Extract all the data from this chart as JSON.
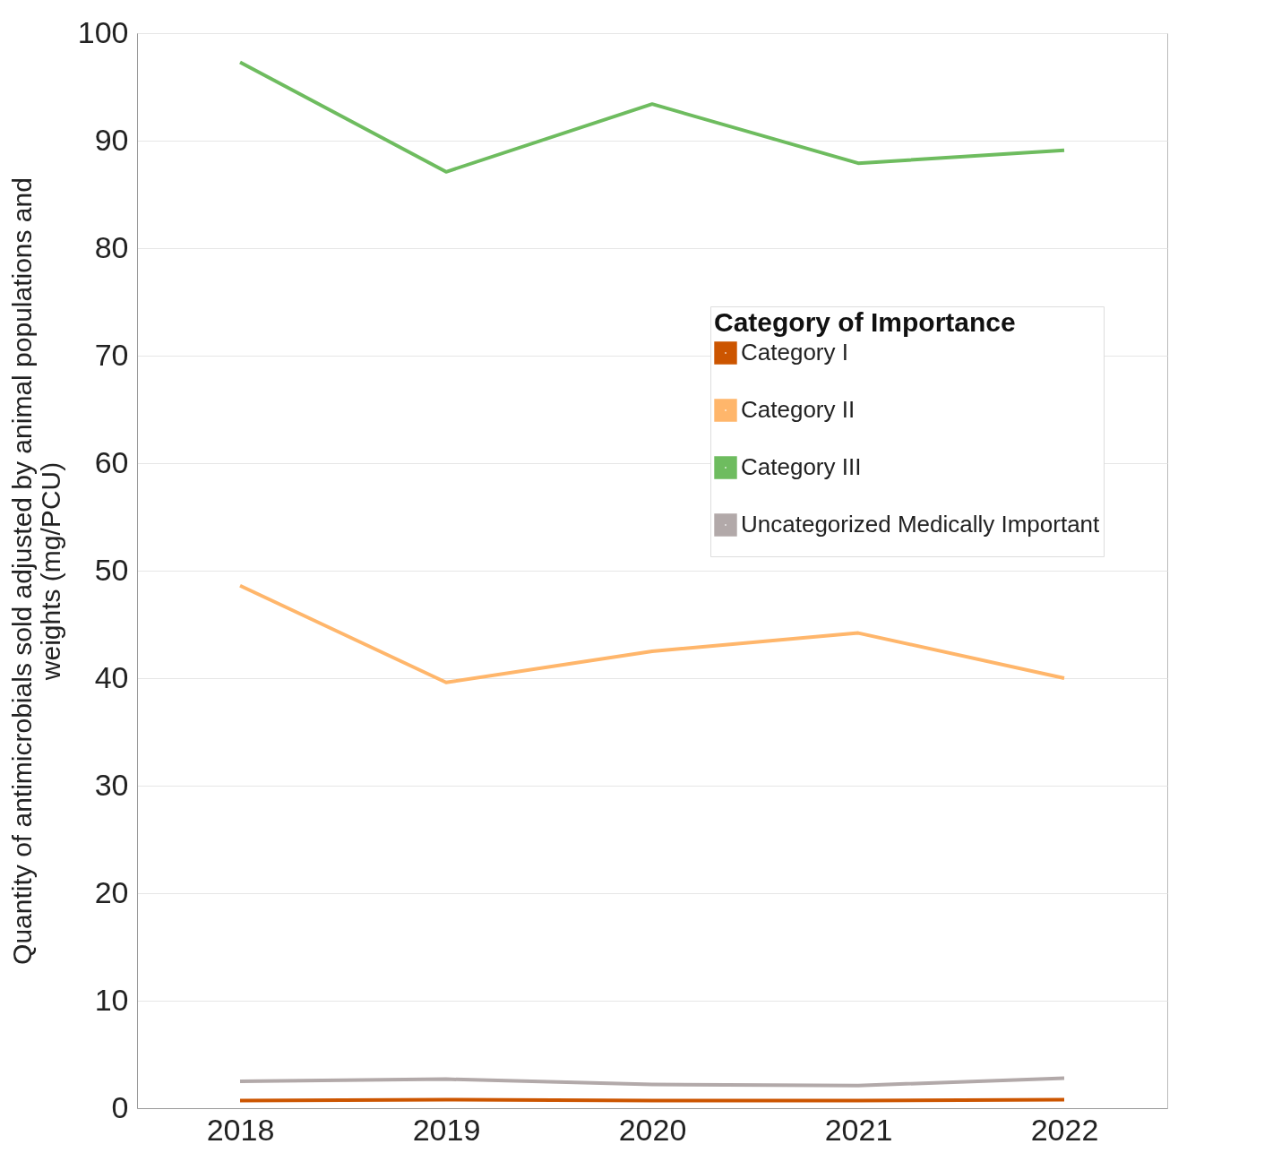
{
  "chart_data": {
    "type": "line",
    "ylabel": "Quantity of antimicrobials sold adjusted by animal populations and weights (mg/PCU)",
    "legend_title": "Category of Importance",
    "categories": [
      "2018",
      "2019",
      "2020",
      "2021",
      "2022"
    ],
    "ylim": [
      0,
      100
    ],
    "yticks": [
      0,
      10,
      20,
      30,
      40,
      50,
      60,
      70,
      80,
      90,
      100
    ],
    "grid": "y",
    "legend": "top right",
    "series": [
      {
        "name": "Category I",
        "color": "#cc5500",
        "values": [
          0.7,
          0.8,
          0.7,
          0.7,
          0.8
        ]
      },
      {
        "name": "Category II",
        "color": "#ffb66b",
        "values": [
          48.6,
          39.6,
          42.5,
          44.2,
          40.0
        ]
      },
      {
        "name": "Category III",
        "color": "#6ebc5f",
        "values": [
          97.3,
          87.1,
          93.4,
          87.9,
          89.1
        ]
      },
      {
        "name": "Uncategorized Medically Important",
        "color": "#b2a9a9",
        "values": [
          2.5,
          2.7,
          2.2,
          2.1,
          2.8
        ]
      }
    ]
  }
}
